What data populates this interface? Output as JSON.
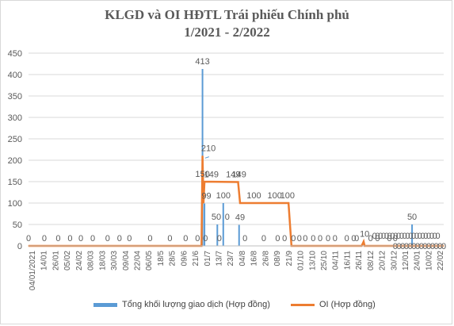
{
  "title_line1": "KLGD và OI HĐTL Trái phiếu Chính phủ",
  "title_line2": "1/2021 - 2/2022",
  "colors": {
    "bar": "#5b9bd5",
    "line": "#ed7d31",
    "grid": "#d9d9d9",
    "text": "#595959"
  },
  "legend": [
    {
      "label": "Tổng khối lượng giao dịch  (Hợp đồng)",
      "kind": "bar"
    },
    {
      "label": "OI (Hợp đồng)",
      "kind": "line"
    }
  ],
  "chart_data": {
    "type": "bar+line",
    "title": "KLGD và OI HĐTL Trái phiếu Chính phủ 1/2021 - 2/2022",
    "ylim": [
      0,
      450
    ],
    "yticks": [
      0,
      50,
      100,
      150,
      200,
      250,
      300,
      350,
      400,
      450
    ],
    "grid": true,
    "legend_position": "bottom",
    "x_tick_labels": [
      "04/01/2021",
      "14/01",
      "26/01",
      "05/02",
      "24/02",
      "08/03",
      "18/03",
      "30/03",
      "09/04",
      "22/04",
      "06/05",
      "18/5",
      "28/5",
      "09/6",
      "21/6",
      "01/7",
      "13/7",
      "23/7",
      "04/8",
      "16/8",
      "26/8",
      "08/9",
      "21/9",
      "01/10",
      "13/10",
      "25/10",
      "04/11",
      "16/11",
      "26/11",
      "08/12",
      "20/12",
      "30/12",
      "12/01",
      "24/01",
      "10/02",
      "22/02"
    ],
    "series": [
      {
        "name": "Tổng khối lượng giao dịch  (Hợp đồng)",
        "type": "bar",
        "points": [
          {
            "x": "2021-06-29",
            "y": 413
          },
          {
            "x": "2021-07-01",
            "y": 99
          },
          {
            "x": "2021-07-14",
            "y": 50
          },
          {
            "x": "2021-07-20",
            "y": 100
          },
          {
            "x": "2021-08-05",
            "y": 49
          },
          {
            "x": "2022-01-27",
            "y": 50
          }
        ]
      },
      {
        "name": "OI (Hợp đồng)",
        "type": "line",
        "points": [
          {
            "x": "2021-01-04",
            "y": 0
          },
          {
            "x": "2021-06-28",
            "y": 0
          },
          {
            "x": "2021-06-29",
            "y": 210
          },
          {
            "x": "2021-06-30",
            "y": 100
          },
          {
            "x": "2021-07-01",
            "y": 150
          },
          {
            "x": "2021-08-04",
            "y": 149
          },
          {
            "x": "2021-08-06",
            "y": 100
          },
          {
            "x": "2021-09-24",
            "y": 100
          },
          {
            "x": "2021-09-27",
            "y": 0
          },
          {
            "x": "2021-12-07",
            "y": 0
          },
          {
            "x": "2021-12-09",
            "y": 10
          },
          {
            "x": "2021-12-10",
            "y": 0
          },
          {
            "x": "2022-02-28",
            "y": 0
          }
        ]
      }
    ],
    "data_labels": [
      {
        "text": "413",
        "x": "2021-06-29",
        "y": 413
      },
      {
        "text": "210",
        "x": "2021-07-05",
        "y": 210
      },
      {
        "text": "150",
        "x": "2021-06-29",
        "y": 150
      },
      {
        "text": "149",
        "x": "2021-07-08",
        "y": 149
      },
      {
        "text": "149",
        "x": "2021-07-30",
        "y": 149
      },
      {
        "text": "149",
        "x": "2021-08-05",
        "y": 149
      },
      {
        "text": "99",
        "x": "2021-07-03",
        "y": 99
      },
      {
        "text": "100",
        "x": "2021-07-20",
        "y": 100
      },
      {
        "text": "50",
        "x": "2021-07-13",
        "y": 50
      },
      {
        "text": "0",
        "x": "2021-07-24",
        "y": 50
      },
      {
        "text": "49",
        "x": "2021-08-06",
        "y": 49
      },
      {
        "text": "100",
        "x": "2021-08-20",
        "y": 100
      },
      {
        "text": "100",
        "x": "2021-09-10",
        "y": 100
      },
      {
        "text": "100",
        "x": "2021-09-23",
        "y": 100
      },
      {
        "text": "10",
        "x": "2021-12-10",
        "y": 10
      },
      {
        "text": "50",
        "x": "2022-01-27",
        "y": 50
      },
      {
        "text": "0",
        "x": "2021-01-04",
        "y": 0
      },
      {
        "text": "0",
        "x": "2021-01-20",
        "y": 0
      },
      {
        "text": "0",
        "x": "2021-02-03",
        "y": 0
      },
      {
        "text": "0",
        "x": "2021-02-15",
        "y": 0
      },
      {
        "text": "0",
        "x": "2021-02-26",
        "y": 0
      },
      {
        "text": "0",
        "x": "2021-03-10",
        "y": 0
      },
      {
        "text": "0",
        "x": "2021-03-25",
        "y": 0
      },
      {
        "text": "0",
        "x": "2021-04-06",
        "y": 0
      },
      {
        "text": "0",
        "x": "2021-04-16",
        "y": 0
      },
      {
        "text": "0",
        "x": "2021-05-07",
        "y": 0
      },
      {
        "text": "0",
        "x": "2021-05-27",
        "y": 0
      },
      {
        "text": "0",
        "x": "2021-06-12",
        "y": 0
      },
      {
        "text": "0",
        "x": "2021-06-24",
        "y": 0
      },
      {
        "text": "0",
        "x": "2021-07-02",
        "y": 0
      },
      {
        "text": "0",
        "x": "2021-07-16",
        "y": 0
      },
      {
        "text": "0",
        "x": "2021-08-11",
        "y": 0
      },
      {
        "text": "0",
        "x": "2021-08-30",
        "y": 0
      },
      {
        "text": "0",
        "x": "2021-09-13",
        "y": 0
      },
      {
        "text": "0",
        "x": "2021-09-20",
        "y": 0
      },
      {
        "text": "0",
        "x": "2021-09-29",
        "y": 0
      },
      {
        "text": "0",
        "x": "2021-10-05",
        "y": 0
      },
      {
        "text": "0",
        "x": "2021-10-11",
        "y": 0
      },
      {
        "text": "0",
        "x": "2021-10-19",
        "y": 0
      },
      {
        "text": "0",
        "x": "2021-10-26",
        "y": 0
      },
      {
        "text": "0",
        "x": "2021-11-03",
        "y": 0
      },
      {
        "text": "0",
        "x": "2021-11-10",
        "y": 0
      },
      {
        "text": "0",
        "x": "2021-11-22",
        "y": 0
      },
      {
        "text": "0",
        "x": "2021-11-29",
        "y": 0
      },
      {
        "text": "0",
        "x": "2021-12-02",
        "y": 0
      },
      {
        "text": "0",
        "x": "2021-12-16",
        "y": 0
      },
      {
        "text": "0",
        "x": "2021-12-23",
        "y": 0
      },
      {
        "text": "0",
        "x": "2022-01-04",
        "y": 0
      },
      {
        "text": "0",
        "x": "2022-01-10",
        "y": 0
      }
    ]
  }
}
